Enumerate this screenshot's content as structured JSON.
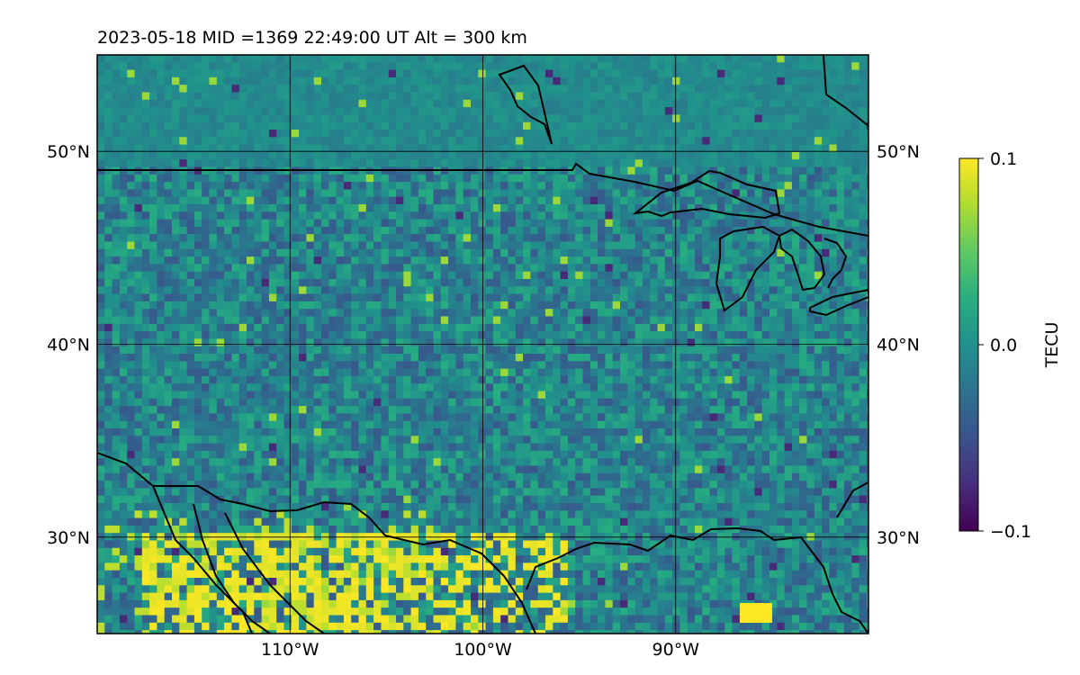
{
  "title": "2023-05-18  MID =1369    22:49:00  UT  Alt = 300 km",
  "map": {
    "lat_range": [
      25,
      55
    ],
    "lon_range": [
      -120,
      -80
    ],
    "lat_ticks": [
      {
        "value": 50,
        "label": "50°N"
      },
      {
        "value": 40,
        "label": "40°N"
      },
      {
        "value": 30,
        "label": "30°N"
      }
    ],
    "lon_ticks": [
      {
        "value": -110,
        "label": "110°W"
      },
      {
        "value": -100,
        "label": "100°W"
      },
      {
        "value": -90,
        "label": "90°W"
      }
    ],
    "grid": true,
    "colormap": "viridis",
    "frame_color": "#000000",
    "coastline_color": "#000000"
  },
  "colorbar": {
    "label": "TECU",
    "min": -0.1,
    "max": 0.1,
    "ticks": [
      {
        "value": 0.1,
        "label": "0.1"
      },
      {
        "value": 0.0,
        "label": "0.0"
      },
      {
        "value": -0.1,
        "label": "−0.1"
      }
    ]
  }
}
